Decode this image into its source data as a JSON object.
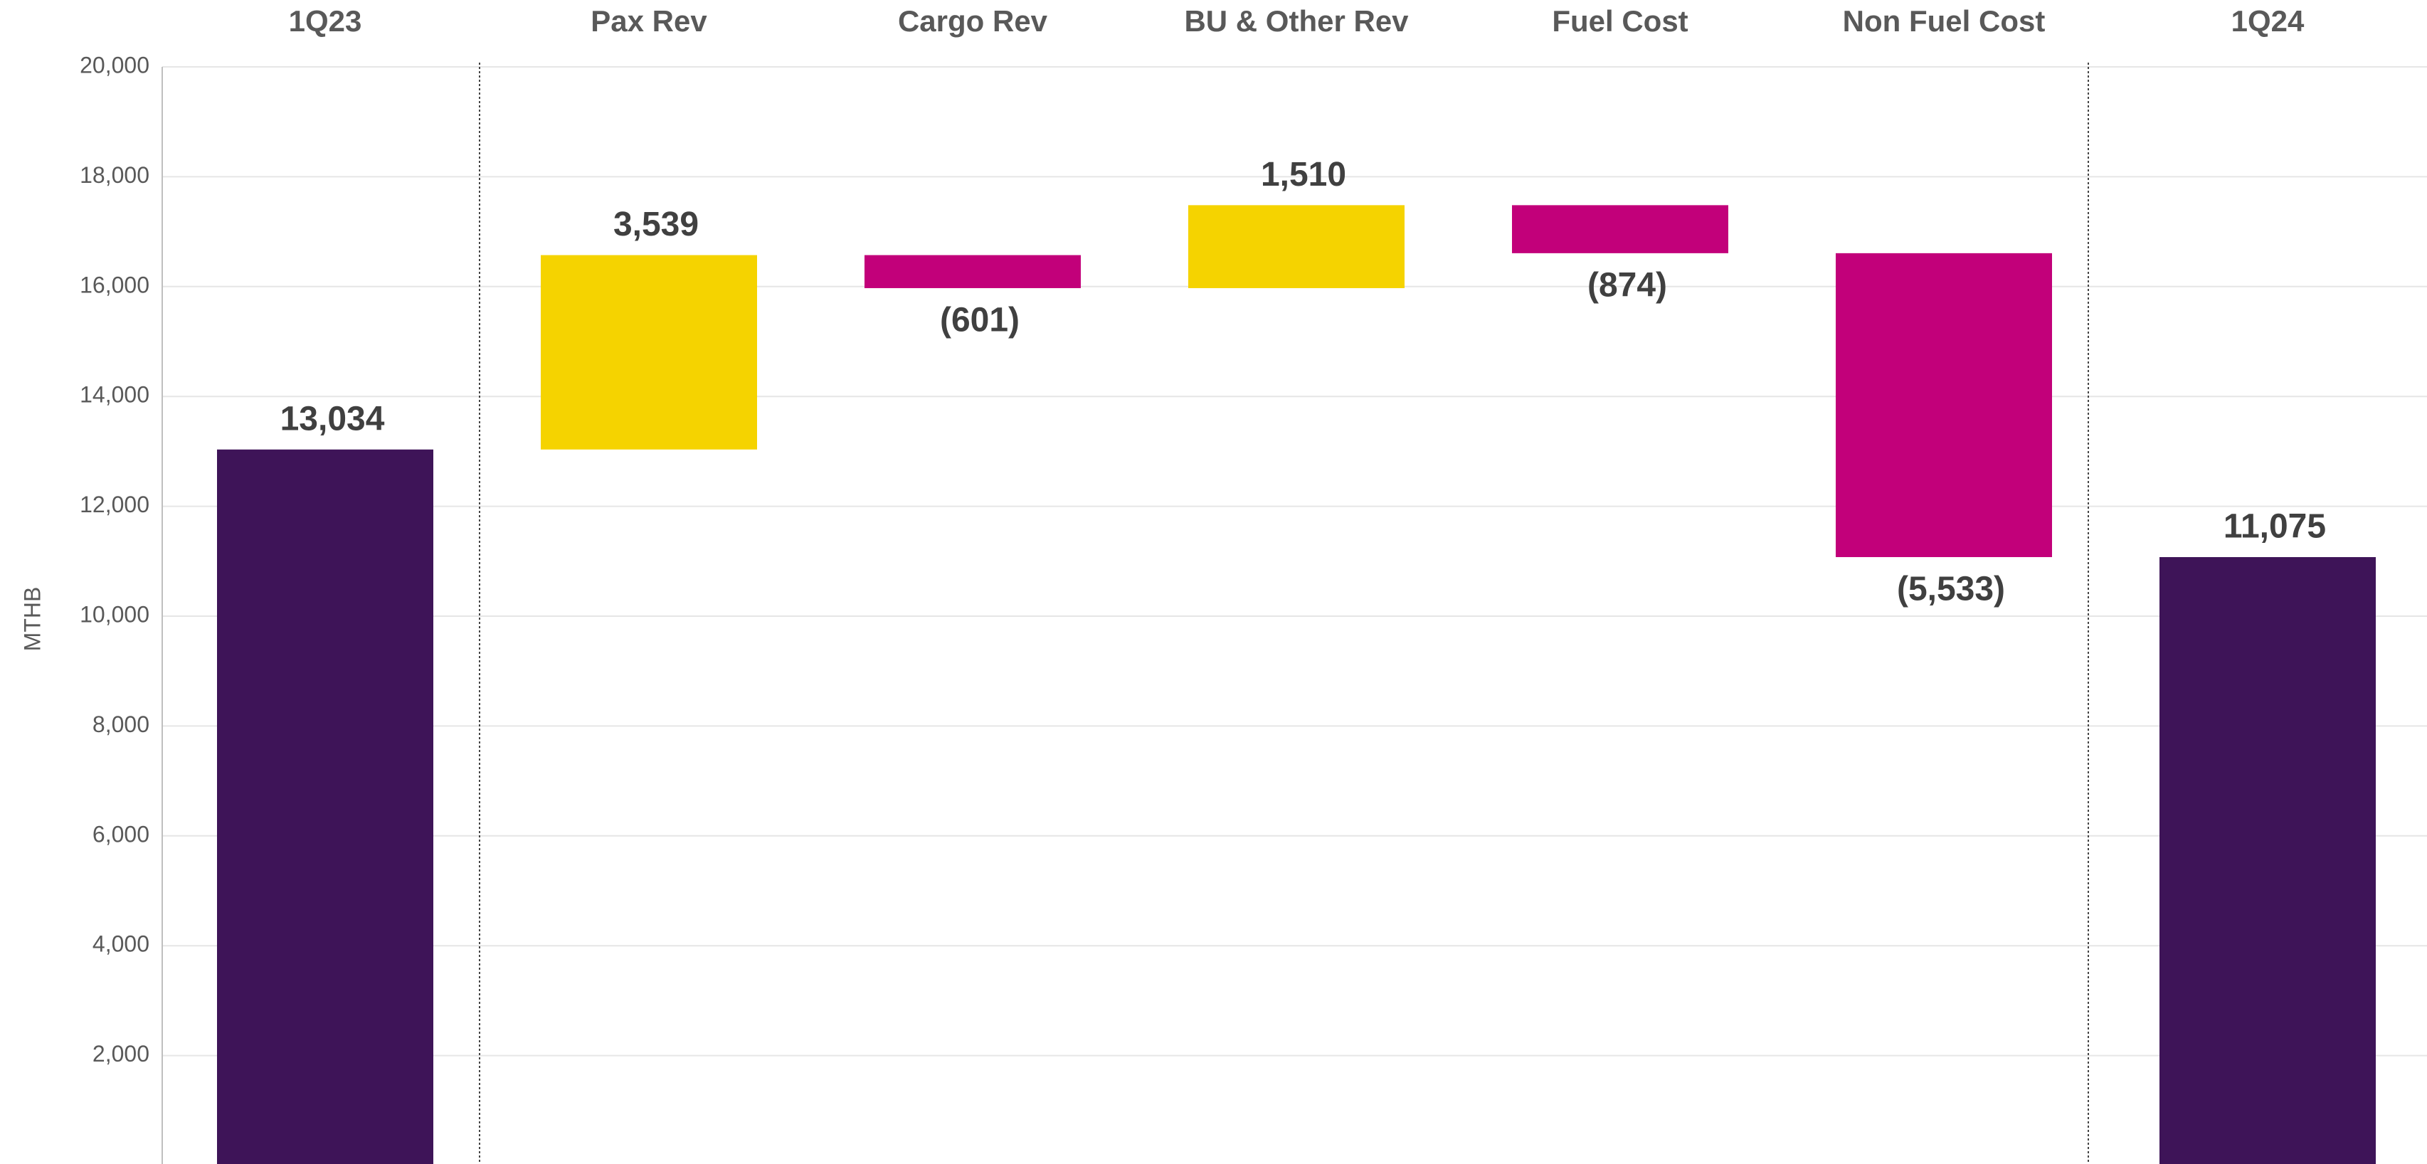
{
  "chart_data": {
    "type": "waterfall",
    "y_label": "MTHB",
    "categories": [
      "1Q23",
      "Pax Rev",
      "Cargo Rev",
      "BU & Other Rev",
      "Fuel Cost",
      "Non Fuel Cost",
      "1Q24"
    ],
    "measure": [
      "total",
      "relative",
      "relative",
      "relative",
      "relative",
      "relative",
      "total"
    ],
    "values": [
      13034,
      3539,
      -601,
      1510,
      -874,
      -5533,
      11075
    ],
    "value_labels": [
      "13,034",
      "3,539",
      "(601)",
      "1,510",
      "(874)",
      "(5,533)",
      "11,075"
    ],
    "colors": [
      "#3e1458",
      "#f5d300",
      "#c2007a",
      "#f5d300",
      "#c2007a",
      "#c2007a",
      "#3e1458"
    ],
    "ylim": [
      0,
      20000
    ],
    "yticks": [
      {
        "value": 2000,
        "label": "2,000"
      },
      {
        "value": 4000,
        "label": "4,000"
      },
      {
        "value": 6000,
        "label": "6,000"
      },
      {
        "value": 8000,
        "label": "8,000"
      },
      {
        "value": 10000,
        "label": "10,000"
      },
      {
        "value": 12000,
        "label": "12,000"
      },
      {
        "value": 14000,
        "label": "14,000"
      },
      {
        "value": 16000,
        "label": "16,000"
      },
      {
        "value": 18000,
        "label": "18,000"
      },
      {
        "value": 20000,
        "label": "20,000"
      }
    ],
    "grid": true
  }
}
